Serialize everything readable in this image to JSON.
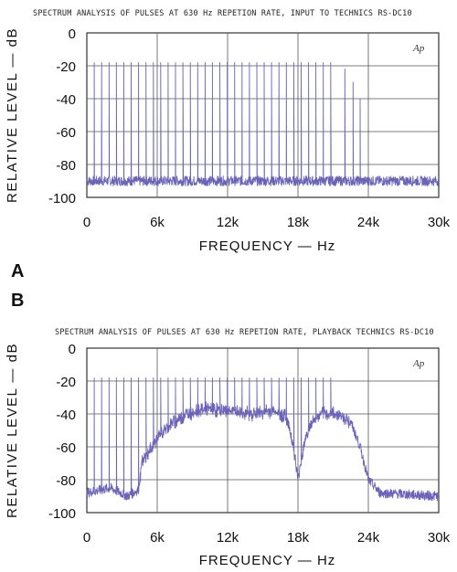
{
  "panels": {
    "A": {
      "letter": "A"
    },
    "B": {
      "letter": "B"
    }
  },
  "chart_data": [
    {
      "type": "line",
      "title": "SPECTRUM ANALYSIS OF PULSES AT 630 Hz REPETION RATE, INPUT TO TECHNICS RS-DC10",
      "xlabel": "FREQUENCY — Hz",
      "ylabel": "RELATIVE LEVEL — dB",
      "annotation": "Ap",
      "xlim": [
        0,
        30000
      ],
      "ylim": [
        -100,
        0
      ],
      "xticks": [
        "0",
        "6k",
        "12k",
        "18k",
        "24k",
        "30k"
      ],
      "yticks": [
        "0",
        "-20",
        "-40",
        "-60",
        "-80",
        "-100"
      ],
      "grid": true,
      "line_color": "#6a63b8",
      "harmonic_spacing_hz": 630,
      "harmonics": {
        "from_hz": 630,
        "to_hz": 21400,
        "peak_db": -18
      },
      "rolloff": [
        [
          21400,
          -18
        ],
        [
          22000,
          -22
        ],
        [
          22700,
          -30
        ],
        [
          23300,
          -40
        ]
      ],
      "noise_floor_db": -90
    },
    {
      "type": "line",
      "title": "SPECTRUM ANALYSIS OF PULSES AT 630 Hz REPETION RATE, PLAYBACK TECHNICS RS-DC10",
      "xlabel": "FREQUENCY — Hz",
      "ylabel": "RELATIVE LEVEL — dB",
      "annotation": "Ap",
      "xlim": [
        0,
        30000
      ],
      "ylim": [
        -100,
        0
      ],
      "xticks": [
        "0",
        "6k",
        "12k",
        "18k",
        "24k",
        "30k"
      ],
      "yticks": [
        "0",
        "-20",
        "-40",
        "-60",
        "-80",
        "-100"
      ],
      "grid": true,
      "line_color": "#6a63b8",
      "harmonic_spacing_hz": 630,
      "harmonics": {
        "from_hz": 630,
        "to_hz": 21400,
        "peak_db": -18
      },
      "floor_envelope": [
        [
          0,
          -88
        ],
        [
          2000,
          -85
        ],
        [
          3500,
          -90
        ],
        [
          4400,
          -86
        ],
        [
          4700,
          -70
        ],
        [
          6000,
          -55
        ],
        [
          7000,
          -47
        ],
        [
          8500,
          -40
        ],
        [
          10000,
          -37
        ],
        [
          12000,
          -38
        ],
        [
          14000,
          -40
        ],
        [
          16000,
          -38
        ],
        [
          17000,
          -42
        ],
        [
          17500,
          -55
        ],
        [
          18000,
          -80
        ],
        [
          18600,
          -55
        ],
        [
          19200,
          -45
        ],
        [
          20000,
          -40
        ],
        [
          21500,
          -40
        ],
        [
          22500,
          -45
        ],
        [
          23300,
          -60
        ],
        [
          24000,
          -80
        ],
        [
          25000,
          -88
        ],
        [
          30000,
          -90
        ]
      ]
    }
  ]
}
